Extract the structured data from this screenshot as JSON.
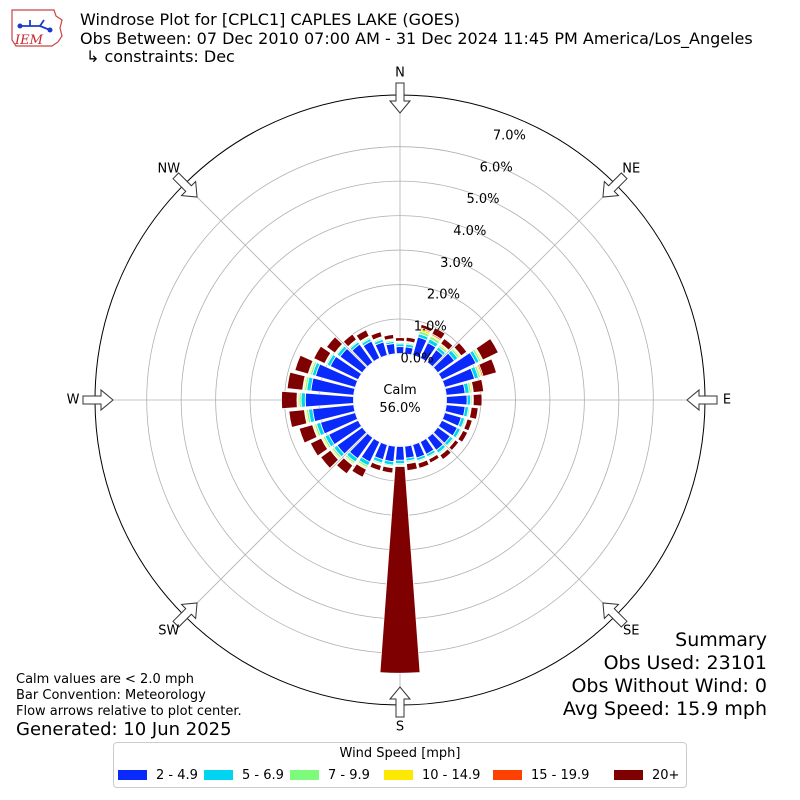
{
  "header": {
    "title": "Windrose Plot for [CPLC1] CAPLES LAKE (GOES)",
    "obs_between": "Obs Between: 07 Dec 2010 07:00 AM - 31 Dec 2024 11:45 PM America/Los_Angeles",
    "constraints": "↳ constraints: Dec",
    "logo_text": "IEM"
  },
  "notes": {
    "calm_note": "Calm values are < 2.0 mph",
    "bar_convention": "Bar Convention: Meteorology",
    "flow_arrows": "Flow arrows relative to plot center.",
    "generated": "Generated: 10 Jun 2025"
  },
  "summary": {
    "heading": "Summary",
    "obs_used": "Obs Used: 23101",
    "obs_without_wind": "Obs Without Wind: 0",
    "avg_speed": "Avg Speed: 15.9 mph"
  },
  "legend": {
    "title": "Wind Speed [mph]",
    "items": [
      {
        "label": "2 - 4.9",
        "color": "#0a2afc"
      },
      {
        "label": "5 - 6.9",
        "color": "#00d4f0"
      },
      {
        "label": "7 - 9.9",
        "color": "#7dfc7b"
      },
      {
        "label": "10 - 14.9",
        "color": "#fce800"
      },
      {
        "label": "15 - 19.9",
        "color": "#fc4100"
      },
      {
        "label": "20+",
        "color": "#7f0000"
      }
    ]
  },
  "chart_data": {
    "type": "windrose",
    "calm_label": "Calm",
    "calm_value": "56.0%",
    "compass": [
      "N",
      "NE",
      "E",
      "SE",
      "S",
      "SW",
      "W",
      "NW"
    ],
    "radial_ticks": [
      "0.0%",
      "1.0%",
      "2.0%",
      "3.0%",
      "4.0%",
      "5.0%",
      "6.0%",
      "7.0%"
    ],
    "rmax": 7.5,
    "rmin_inner": -1.35,
    "directions_deg": [
      0,
      10,
      20,
      30,
      40,
      50,
      60,
      70,
      80,
      90,
      100,
      110,
      120,
      130,
      140,
      150,
      160,
      170,
      180,
      190,
      200,
      210,
      220,
      230,
      240,
      250,
      260,
      270,
      280,
      290,
      300,
      310,
      320,
      330,
      340,
      350
    ],
    "bins": [
      {
        "name": "2 - 4.9",
        "color": "#0a2afc",
        "values": [
          0.2,
          0.2,
          0.55,
          0.5,
          0.45,
          0.6,
          1.1,
          0.9,
          0.55,
          0.6,
          0.55,
          0.5,
          0.5,
          0.45,
          0.45,
          0.4,
          0.4,
          0.35,
          0.4,
          0.45,
          0.45,
          0.65,
          0.75,
          0.9,
          0.95,
          1.05,
          1.2,
          1.4,
          1.25,
          1.2,
          0.9,
          0.8,
          0.65,
          0.55,
          0.4,
          0.3
        ]
      },
      {
        "name": "5 - 6.9",
        "color": "#00d4f0",
        "values": [
          0.08,
          0.08,
          0.1,
          0.12,
          0.1,
          0.12,
          0.1,
          0.12,
          0.12,
          0.1,
          0.1,
          0.1,
          0.1,
          0.1,
          0.1,
          0.08,
          0.08,
          0.08,
          0.1,
          0.1,
          0.1,
          0.12,
          0.12,
          0.12,
          0.12,
          0.12,
          0.12,
          0.12,
          0.12,
          0.1,
          0.1,
          0.1,
          0.08,
          0.08,
          0.08,
          0.06
        ]
      },
      {
        "name": "7 - 9.9",
        "color": "#7dfc7b",
        "values": [
          0.04,
          0.04,
          0.08,
          0.08,
          0.06,
          0.06,
          0.06,
          0.06,
          0.06,
          0.04,
          0.04,
          0.04,
          0.04,
          0.04,
          0.04,
          0.04,
          0.04,
          0.04,
          0.04,
          0.04,
          0.04,
          0.06,
          0.06,
          0.06,
          0.06,
          0.06,
          0.06,
          0.06,
          0.06,
          0.06,
          0.04,
          0.04,
          0.04,
          0.04,
          0.04,
          0.04
        ]
      },
      {
        "name": "10 - 14.9",
        "color": "#fce800",
        "values": [
          0.02,
          0.02,
          0.06,
          0.04,
          0.04,
          0.04,
          0.04,
          0.04,
          0.04,
          0.02,
          0.02,
          0.02,
          0.02,
          0.02,
          0.02,
          0.02,
          0.02,
          0.02,
          0.02,
          0.02,
          0.02,
          0.04,
          0.04,
          0.04,
          0.04,
          0.04,
          0.04,
          0.04,
          0.04,
          0.04,
          0.02,
          0.02,
          0.02,
          0.02,
          0.02,
          0.02
        ]
      },
      {
        "name": "15 - 19.9",
        "color": "#fc4100",
        "values": [
          0.02,
          0.02,
          0.04,
          0.04,
          0.02,
          0.02,
          0.02,
          0.04,
          0.02,
          0.02,
          0.02,
          0.02,
          0.02,
          0.02,
          0.02,
          0.02,
          0.02,
          0.02,
          0.02,
          0.02,
          0.02,
          0.02,
          0.02,
          0.02,
          0.02,
          0.02,
          0.02,
          0.02,
          0.02,
          0.02,
          0.02,
          0.02,
          0.02,
          0.02,
          0.02,
          0.02
        ]
      },
      {
        "name": "20+",
        "color": "#7f0000",
        "values": [
          0.1,
          0.12,
          0.1,
          0.2,
          0.18,
          0.2,
          0.5,
          0.4,
          0.3,
          0.25,
          0.2,
          0.15,
          0.15,
          0.12,
          0.15,
          0.12,
          0.15,
          0.2,
          6.0,
          0.15,
          0.15,
          0.25,
          0.3,
          0.35,
          0.35,
          0.4,
          0.45,
          0.45,
          0.45,
          0.4,
          0.35,
          0.3,
          0.2,
          0.2,
          0.15,
          0.12
        ]
      }
    ],
    "grid": true
  }
}
